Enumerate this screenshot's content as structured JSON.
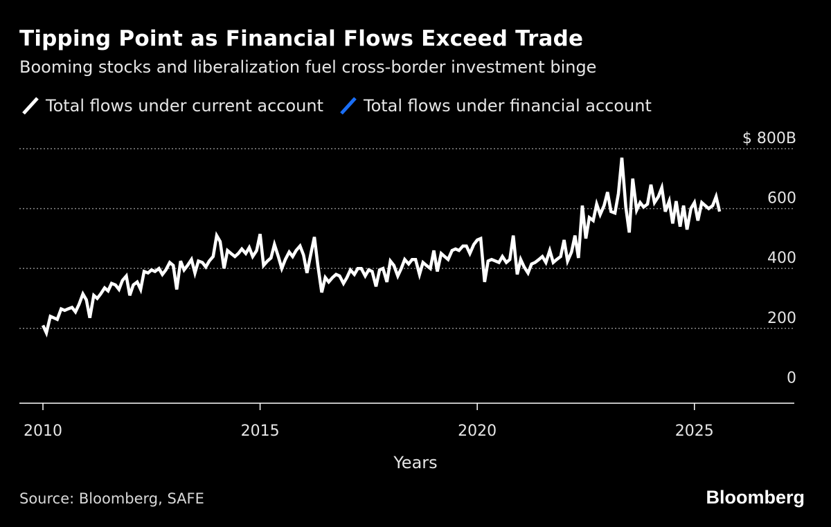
{
  "title": "Tipping Point as Financial Flows Exceed Trade",
  "subtitle": "Booming stocks and liberalization fuel cross-border investment binge",
  "legend": [
    {
      "label": "Total flows under current account",
      "color": "#ffffff"
    },
    {
      "label": "Total flows under financial account",
      "color": "#1a6ef5"
    }
  ],
  "source": "Source: Bloomberg, SAFE",
  "brand": "Bloomberg",
  "chart_data": {
    "type": "line",
    "xlabel": "Years",
    "ylabel": "",
    "y_unit_label": "$ 800B",
    "xlim": [
      2010,
      2027.3
    ],
    "ylim": [
      -50,
      800
    ],
    "x_ticks": [
      2010,
      2015,
      2020,
      2025
    ],
    "x_tick_labels": [
      "2010",
      "2015",
      "2020",
      "2025"
    ],
    "y_ticks": [
      0,
      200,
      400,
      600,
      800
    ],
    "y_tick_labels": [
      "0",
      "200",
      "400",
      "600",
      "$ 800B"
    ],
    "grid": true,
    "legend_position": "top-left",
    "series": [
      {
        "name": "Total flows under current account",
        "color": "#ffffff",
        "x": [
          2010.0,
          2010.08,
          2010.17,
          2010.25,
          2010.33,
          2010.42,
          2010.5,
          2010.58,
          2010.67,
          2010.75,
          2010.83,
          2010.92,
          2011.0,
          2011.08,
          2011.17,
          2011.25,
          2011.33,
          2011.42,
          2011.5,
          2011.58,
          2011.67,
          2011.75,
          2011.83,
          2011.92,
          2012.0,
          2012.08,
          2012.17,
          2012.25,
          2012.33,
          2012.42,
          2012.5,
          2012.58,
          2012.67,
          2012.75,
          2012.83,
          2012.92,
          2013.0,
          2013.08,
          2013.17,
          2013.25,
          2013.33,
          2013.42,
          2013.5,
          2013.58,
          2013.67,
          2013.75,
          2013.83,
          2013.92,
          2014.0,
          2014.08,
          2014.17,
          2014.25,
          2014.33,
          2014.42,
          2014.5,
          2014.58,
          2014.67,
          2014.75,
          2014.83,
          2014.92,
          2015.0,
          2015.08,
          2015.17,
          2015.25,
          2015.33,
          2015.42,
          2015.5,
          2015.58,
          2015.67,
          2015.75,
          2015.83,
          2015.92,
          2016.0,
          2016.08,
          2016.17,
          2016.25,
          2016.33,
          2016.42,
          2016.5,
          2016.58,
          2016.67,
          2016.75,
          2016.83,
          2016.92,
          2017.0,
          2017.08,
          2017.17,
          2017.25,
          2017.33,
          2017.42,
          2017.5,
          2017.58,
          2017.67,
          2017.75,
          2017.83,
          2017.92,
          2018.0,
          2018.08,
          2018.17,
          2018.25,
          2018.33,
          2018.42,
          2018.5,
          2018.58,
          2018.67,
          2018.75,
          2018.83,
          2018.92,
          2019.0,
          2019.08,
          2019.17,
          2019.25,
          2019.33,
          2019.42,
          2019.5,
          2019.58,
          2019.67,
          2019.75,
          2019.83,
          2019.92,
          2020.0,
          2020.08,
          2020.17,
          2020.25,
          2020.33,
          2020.42,
          2020.5,
          2020.58,
          2020.67,
          2020.75,
          2020.83,
          2020.92,
          2021.0,
          2021.08,
          2021.17,
          2021.25,
          2021.33,
          2021.42,
          2021.5,
          2021.58,
          2021.67,
          2021.75,
          2021.83,
          2021.92,
          2022.0,
          2022.08,
          2022.17,
          2022.25,
          2022.33,
          2022.42,
          2022.5,
          2022.58,
          2022.67,
          2022.75,
          2022.83,
          2022.92,
          2023.0,
          2023.08,
          2023.17,
          2023.25,
          2023.33,
          2023.42,
          2023.5,
          2023.58,
          2023.67,
          2023.75,
          2023.83,
          2023.92,
          2024.0,
          2024.08,
          2024.17,
          2024.25,
          2024.33,
          2024.42,
          2024.5,
          2024.58,
          2024.67,
          2024.75,
          2024.83,
          2024.92,
          2025.0,
          2025.08,
          2025.17,
          2025.25,
          2025.33,
          2025.42,
          2025.5,
          2025.58
        ],
        "values": [
          210,
          185,
          240,
          235,
          230,
          265,
          260,
          265,
          270,
          255,
          280,
          315,
          295,
          235,
          310,
          300,
          315,
          335,
          325,
          350,
          345,
          330,
          360,
          375,
          310,
          345,
          355,
          330,
          390,
          385,
          395,
          390,
          400,
          380,
          395,
          420,
          410,
          330,
          425,
          395,
          410,
          430,
          385,
          425,
          420,
          405,
          425,
          440,
          510,
          490,
          400,
          460,
          450,
          440,
          450,
          465,
          450,
          470,
          440,
          460,
          515,
          410,
          425,
          435,
          480,
          440,
          400,
          430,
          455,
          440,
          460,
          475,
          445,
          385,
          450,
          505,
          410,
          320,
          370,
          355,
          370,
          380,
          375,
          350,
          370,
          395,
          380,
          400,
          400,
          375,
          395,
          390,
          340,
          395,
          400,
          355,
          425,
          410,
          375,
          400,
          430,
          415,
          430,
          430,
          380,
          420,
          410,
          400,
          460,
          390,
          450,
          440,
          430,
          460,
          465,
          460,
          475,
          475,
          450,
          480,
          495,
          500,
          355,
          425,
          430,
          425,
          420,
          440,
          420,
          430,
          510,
          380,
          430,
          405,
          385,
          415,
          420,
          430,
          440,
          420,
          460,
          420,
          430,
          440,
          495,
          425,
          455,
          510,
          435,
          610,
          500,
          570,
          560,
          615,
          580,
          610,
          655,
          590,
          585,
          650,
          770,
          605,
          520,
          700,
          595,
          620,
          605,
          615,
          680,
          620,
          640,
          670,
          590,
          625,
          550,
          625,
          540,
          610,
          530,
          600,
          620,
          560,
          620,
          610,
          600,
          610,
          640,
          590
        ],
        "draw": "computed"
      },
      {
        "name": "Total flows under financial account",
        "color": "#1a6ef5",
        "draw": "computed"
      }
    ]
  }
}
